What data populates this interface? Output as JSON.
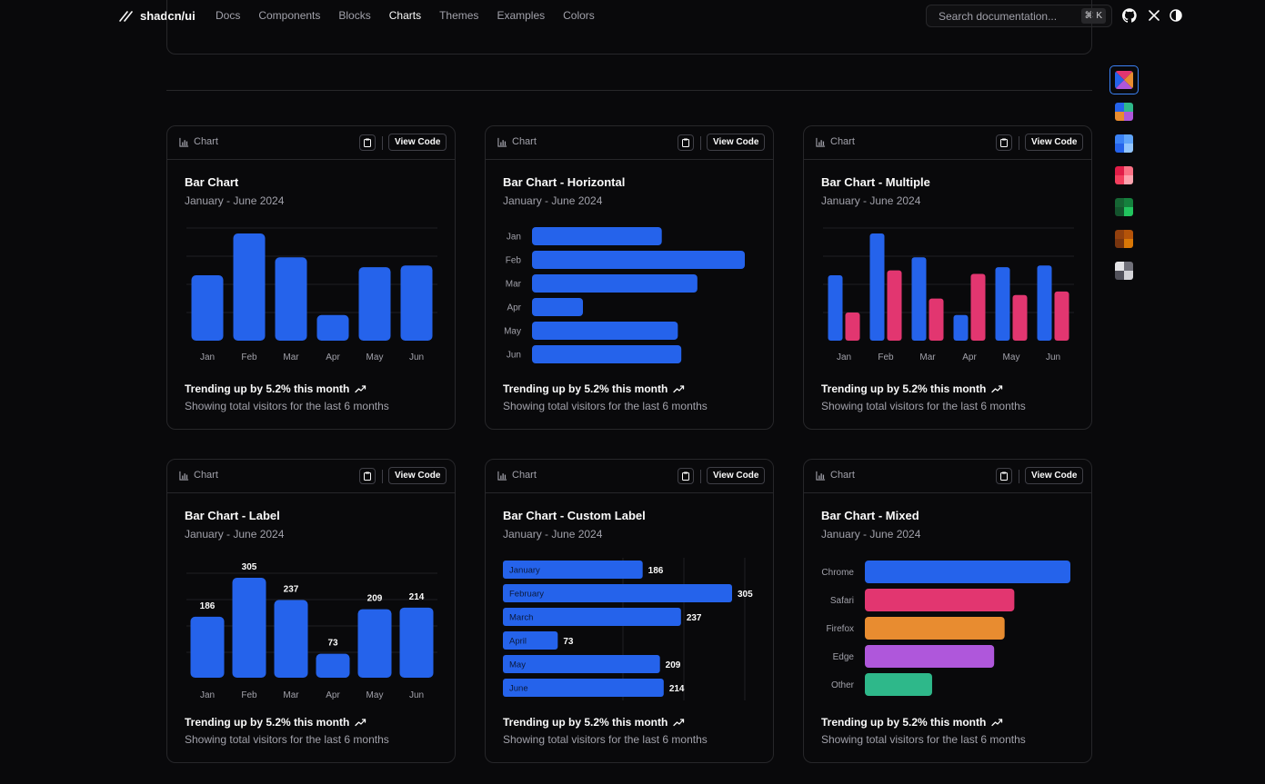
{
  "header": {
    "logo": "shadcn/ui",
    "nav": [
      "Docs",
      "Components",
      "Blocks",
      "Charts",
      "Themes",
      "Examples",
      "Colors"
    ],
    "active_nav": "Charts",
    "search_placeholder": "Search documentation...",
    "search_kbd": "⌘ K"
  },
  "colors": {
    "blue": "#2563eb",
    "pink": "#e23670",
    "orange": "#e88c30",
    "purple": "#af57db",
    "green": "#2eb88a"
  },
  "card_common": {
    "chip": "Chart",
    "view_code": "View Code",
    "subtitle": "January - June 2024",
    "trend": "Trending up by 5.2% this month",
    "footer": "Showing total visitors for the last 6 months"
  },
  "cards": [
    {
      "title": "Bar Chart"
    },
    {
      "title": "Bar Chart - Horizontal"
    },
    {
      "title": "Bar Chart - Multiple"
    },
    {
      "title": "Bar Chart - Label"
    },
    {
      "title": "Bar Chart - Custom Label"
    },
    {
      "title": "Bar Chart - Mixed"
    }
  ],
  "chart_data": [
    {
      "type": "bar",
      "title": "Bar Chart",
      "categories": [
        "Jan",
        "Feb",
        "Mar",
        "Apr",
        "May",
        "Jun"
      ],
      "values": [
        186,
        305,
        237,
        73,
        209,
        214
      ],
      "ylim": [
        0,
        320
      ],
      "grid": true
    },
    {
      "type": "bar",
      "orientation": "horizontal",
      "title": "Bar Chart - Horizontal",
      "categories": [
        "Jan",
        "Feb",
        "Mar",
        "Apr",
        "May",
        "Jun"
      ],
      "values": [
        186,
        305,
        237,
        73,
        209,
        214
      ],
      "xlim": [
        0,
        305
      ]
    },
    {
      "type": "bar",
      "title": "Bar Chart - Multiple",
      "categories": [
        "Jan",
        "Feb",
        "Mar",
        "Apr",
        "May",
        "Jun"
      ],
      "series": [
        {
          "values": [
            186,
            305,
            237,
            73,
            209,
            214
          ]
        },
        {
          "values": [
            80,
            200,
            120,
            190,
            130,
            140
          ]
        }
      ],
      "ylim": [
        0,
        320
      ],
      "grid": true
    },
    {
      "type": "bar",
      "title": "Bar Chart - Label",
      "categories": [
        "Jan",
        "Feb",
        "Mar",
        "Apr",
        "May",
        "Jun"
      ],
      "values": [
        186,
        305,
        237,
        73,
        209,
        214
      ],
      "data_labels": [
        "186",
        "305",
        "237",
        "73",
        "209",
        "214"
      ],
      "ylim": [
        0,
        320
      ],
      "grid": true
    },
    {
      "type": "bar",
      "orientation": "horizontal",
      "title": "Bar Chart - Custom Label",
      "categories": [
        "January",
        "February",
        "March",
        "April",
        "May",
        "June"
      ],
      "values": [
        186,
        305,
        237,
        73,
        209,
        214
      ],
      "data_labels": [
        "186",
        "305",
        "237",
        "73",
        "209",
        "214"
      ],
      "xlim": [
        0,
        305
      ]
    },
    {
      "type": "bar",
      "orientation": "horizontal",
      "title": "Bar Chart - Mixed",
      "categories": [
        "Chrome",
        "Safari",
        "Firefox",
        "Edge",
        "Other"
      ],
      "values": [
        275,
        200,
        187,
        173,
        90
      ],
      "xlim": [
        0,
        275
      ]
    }
  ],
  "swatches": [
    {
      "name": "default",
      "colors": [
        "#2563eb",
        "#e23670",
        "#e88c30",
        "#af57db"
      ]
    },
    {
      "name": "palette",
      "colors": [
        "#2563eb",
        "#2eb88a",
        "#e88c30",
        "#af57db"
      ]
    },
    {
      "name": "blue",
      "colors": [
        "#3b82f6",
        "#60a5fa",
        "#2563eb",
        "#93c5fd"
      ]
    },
    {
      "name": "rose",
      "colors": [
        "#e11d48",
        "#fb7185",
        "#f43f5e",
        "#fda4af"
      ]
    },
    {
      "name": "green",
      "colors": [
        "#166534",
        "#15803d",
        "#14532d",
        "#22c55e"
      ]
    },
    {
      "name": "brown",
      "colors": [
        "#92400e",
        "#b45309",
        "#78350f",
        "#d97706"
      ]
    },
    {
      "name": "neutral",
      "colors": [
        "#e4e4e7",
        "#71717a",
        "#52525b",
        "#d4d4d8"
      ]
    }
  ]
}
